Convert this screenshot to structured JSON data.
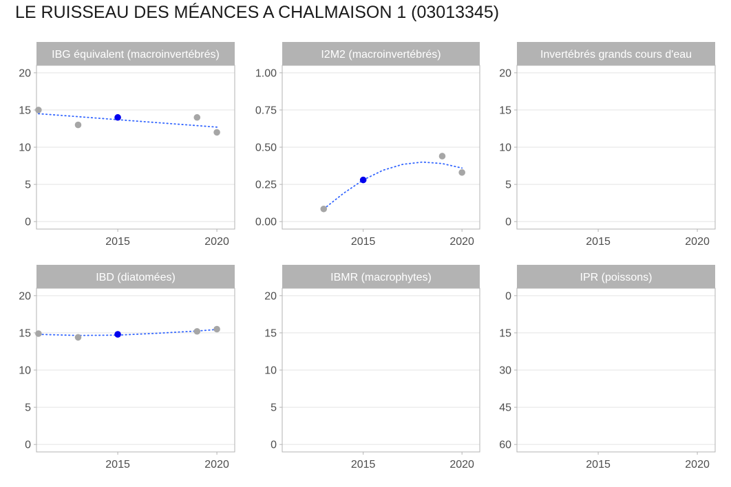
{
  "title": "LE RUISSEAU DES MÉANCES A CHALMAISON 1 (03013345)",
  "colors": {
    "strip": "#b3b3b3",
    "panel_border": "#b3b3b3",
    "grid": "#e3e3e3",
    "point": "#a6a6a6",
    "highlight_point": "#0000ee",
    "trend": "#3366ff"
  },
  "chart_data": [
    {
      "type": "scatter",
      "title": "IBG équivalent (macroinvertébrés)",
      "xlim": [
        2010.9,
        2020.9
      ],
      "ylim": [
        -1,
        21
      ],
      "x_ticks": [
        "2015",
        "2020"
      ],
      "y_ticks": [
        "0",
        "5",
        "10",
        "15",
        "20"
      ],
      "y_reversed": false,
      "points": [
        {
          "x": 2011,
          "y": 15
        },
        {
          "x": 2013,
          "y": 13
        },
        {
          "x": 2015,
          "y": 14,
          "highlight": true
        },
        {
          "x": 2019,
          "y": 14
        },
        {
          "x": 2020,
          "y": 12
        }
      ],
      "trend": [
        [
          2011,
          14.5
        ],
        [
          2013,
          14.1
        ],
        [
          2015,
          13.7
        ],
        [
          2017,
          13.3
        ],
        [
          2019,
          12.9
        ],
        [
          2020,
          12.7
        ]
      ]
    },
    {
      "type": "scatter",
      "title": "I2M2 (macroinvertébrés)",
      "xlim": [
        2010.9,
        2020.9
      ],
      "ylim": [
        -0.05,
        1.05
      ],
      "x_ticks": [
        "2015",
        "2020"
      ],
      "y_ticks": [
        "0.00",
        "0.25",
        "0.50",
        "0.75",
        "1.00"
      ],
      "y_reversed": false,
      "points": [
        {
          "x": 2013,
          "y": 0.085
        },
        {
          "x": 2015,
          "y": 0.28,
          "highlight": true
        },
        {
          "x": 2019,
          "y": 0.44
        },
        {
          "x": 2020,
          "y": 0.33
        }
      ],
      "trend": [
        [
          2013,
          0.085
        ],
        [
          2014,
          0.19
        ],
        [
          2015,
          0.28
        ],
        [
          2016,
          0.345
        ],
        [
          2017,
          0.385
        ],
        [
          2018,
          0.4
        ],
        [
          2019,
          0.39
        ],
        [
          2020,
          0.36
        ]
      ]
    },
    {
      "type": "scatter",
      "title": "Invertébrés grands cours d'eau",
      "xlim": [
        2010.9,
        2020.9
      ],
      "ylim": [
        -1,
        21
      ],
      "x_ticks": [
        "2015",
        "2020"
      ],
      "y_ticks": [
        "0",
        "5",
        "10",
        "15",
        "20"
      ],
      "y_reversed": false,
      "points": [],
      "trend": []
    },
    {
      "type": "scatter",
      "title": "IBD (diatomées)",
      "xlim": [
        2010.9,
        2020.9
      ],
      "ylim": [
        -1,
        21
      ],
      "x_ticks": [
        "2015",
        "2020"
      ],
      "y_ticks": [
        "0",
        "5",
        "10",
        "15",
        "20"
      ],
      "y_reversed": false,
      "points": [
        {
          "x": 2011,
          "y": 14.9
        },
        {
          "x": 2013,
          "y": 14.4
        },
        {
          "x": 2015,
          "y": 14.8,
          "highlight": true
        },
        {
          "x": 2019,
          "y": 15.2
        },
        {
          "x": 2020,
          "y": 15.5
        }
      ],
      "trend": [
        [
          2011,
          14.8
        ],
        [
          2013,
          14.65
        ],
        [
          2015,
          14.7
        ],
        [
          2017,
          14.95
        ],
        [
          2019,
          15.25
        ],
        [
          2020,
          15.45
        ]
      ]
    },
    {
      "type": "scatter",
      "title": "IBMR (macrophytes)",
      "xlim": [
        2010.9,
        2020.9
      ],
      "ylim": [
        -1,
        21
      ],
      "x_ticks": [
        "2015",
        "2020"
      ],
      "y_ticks": [
        "0",
        "5",
        "10",
        "15",
        "20"
      ],
      "y_reversed": false,
      "points": [],
      "trend": []
    },
    {
      "type": "scatter",
      "title": "IPR (poissons)",
      "xlim": [
        2010.9,
        2020.9
      ],
      "ylim": [
        -3,
        63
      ],
      "x_ticks": [
        "2015",
        "2020"
      ],
      "y_ticks": [
        "0",
        "15",
        "30",
        "45",
        "60"
      ],
      "y_reversed": true,
      "points": [],
      "trend": []
    }
  ]
}
